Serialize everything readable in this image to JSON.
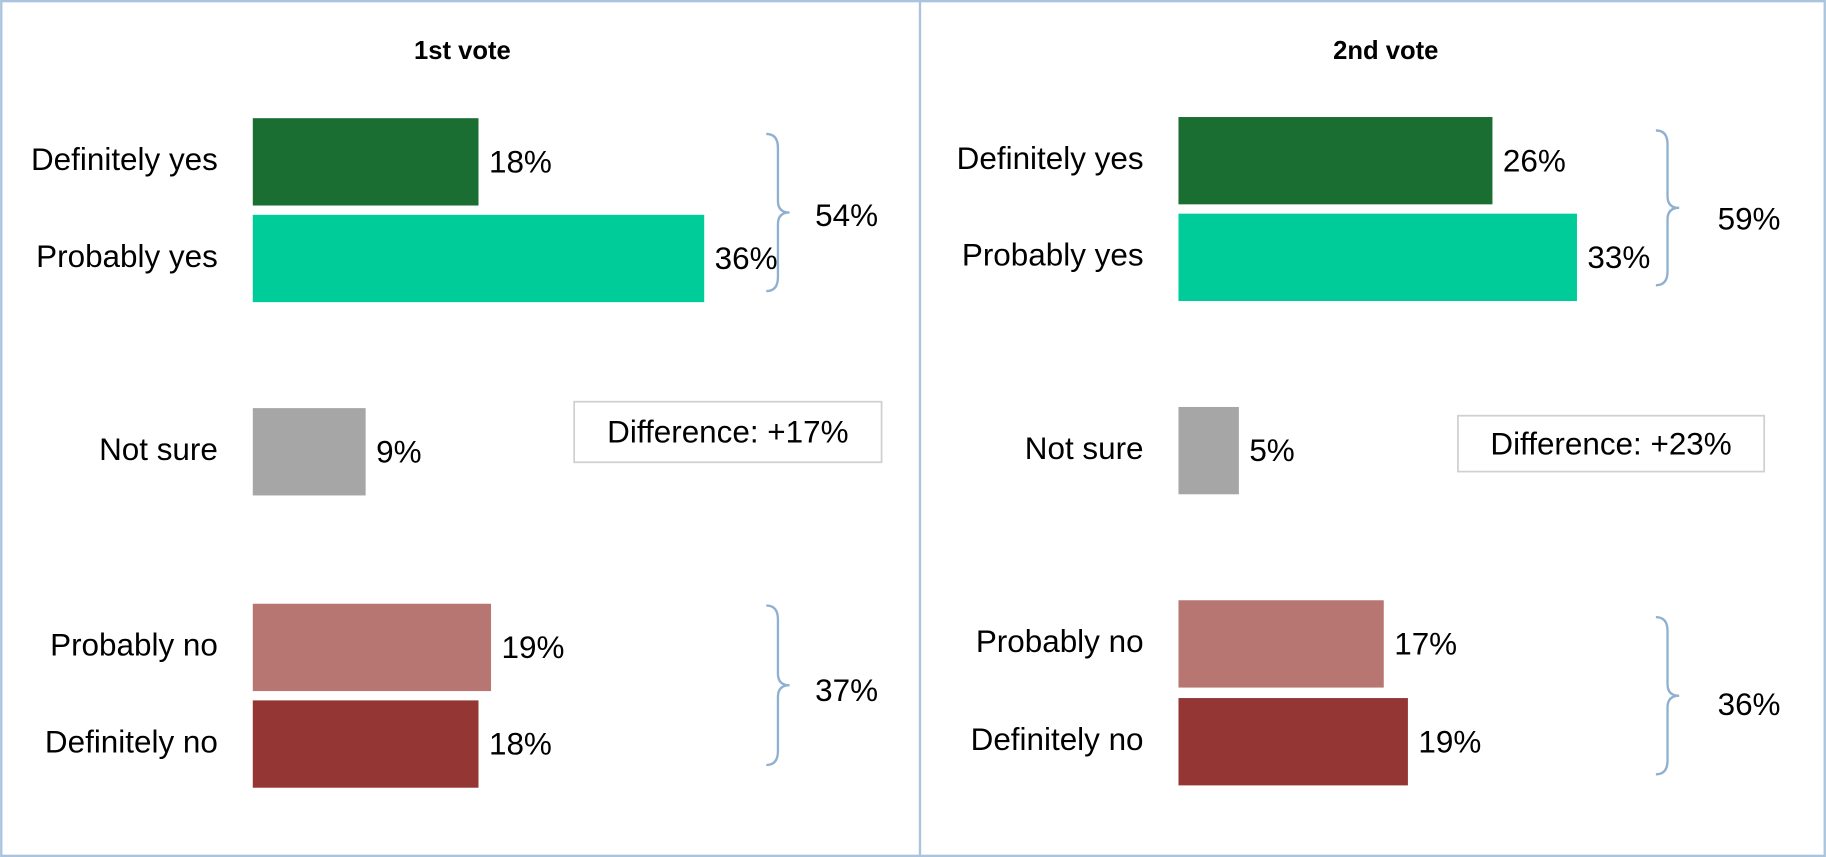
{
  "chart_data": [
    {
      "type": "bar",
      "orientation": "horizontal",
      "title": "1st vote",
      "categories": [
        "Definitely yes",
        "Probably yes",
        "Not sure",
        "Probably no",
        "Definitely no"
      ],
      "values": [
        18,
        36,
        9,
        19,
        18
      ],
      "value_labels": [
        "18%",
        "36%",
        "9%",
        "19%",
        "18%"
      ],
      "colors": [
        "#1a6e32",
        "#00cc99",
        "#a6a6a6",
        "#b87672",
        "#943634"
      ],
      "xlim": [
        0,
        52
      ],
      "annotations": {
        "yes_total": "54%",
        "no_total": "37%",
        "difference": "Difference: +17%"
      }
    },
    {
      "type": "bar",
      "orientation": "horizontal",
      "title": "2nd vote",
      "categories": [
        "Definitely yes",
        "Probably yes",
        "Not sure",
        "Probably no",
        "Definitely no"
      ],
      "values": [
        26,
        33,
        5,
        17,
        19
      ],
      "value_labels": [
        "26%",
        "33%",
        "5%",
        "17%",
        "19%"
      ],
      "colors": [
        "#1a6e32",
        "#00cc99",
        "#a6a6a6",
        "#b87672",
        "#943634"
      ],
      "xlim": [
        0,
        54
      ],
      "annotations": {
        "yes_total": "59%",
        "no_total": "36%",
        "difference": "Difference: +23%"
      }
    }
  ]
}
